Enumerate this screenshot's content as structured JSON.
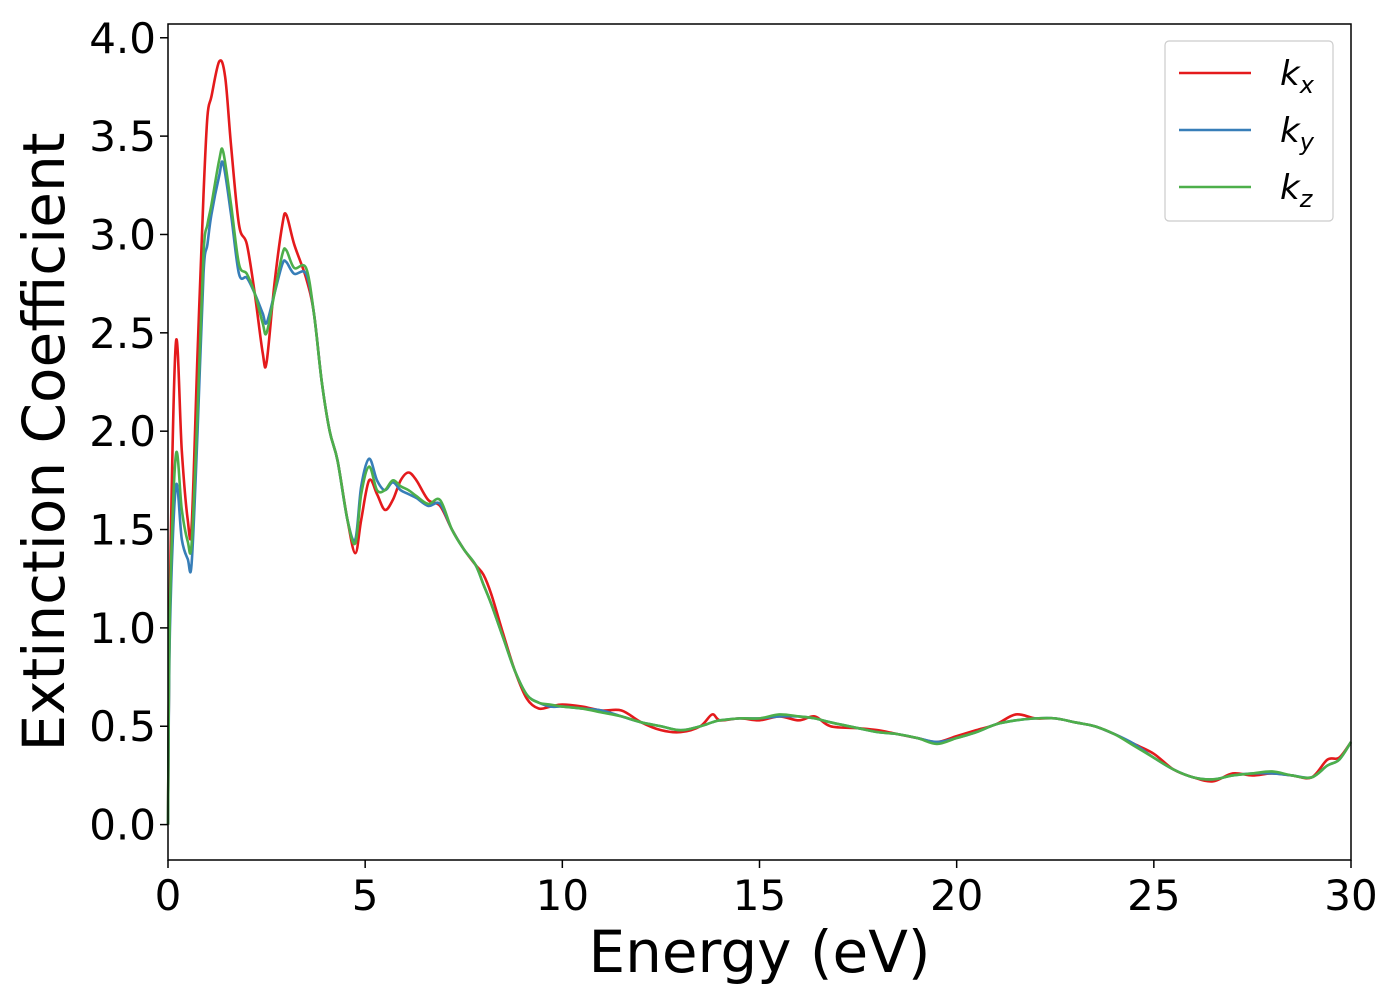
{
  "chart_data": {
    "type": "line",
    "xlabel": "Energy (eV)",
    "ylabel": "Extinction Coefficient",
    "xlim": [
      0,
      30
    ],
    "ylim": [
      -0.18,
      4.07
    ],
    "xticks": [
      0,
      5,
      10,
      15,
      20,
      25,
      30
    ],
    "xtick_labels": [
      "0",
      "5",
      "10",
      "15",
      "20",
      "25",
      "30"
    ],
    "yticks": [
      0.0,
      0.5,
      1.0,
      1.5,
      2.0,
      2.5,
      3.0,
      3.5,
      4.0
    ],
    "ytick_labels": [
      "0.0",
      "0.5",
      "1.0",
      "1.5",
      "2.0",
      "2.5",
      "3.0",
      "3.5",
      "4.0"
    ],
    "grid": false,
    "legend_position": "top-right",
    "series": [
      {
        "name": "k",
        "subscript": "x",
        "color": "#e41a1c",
        "points": [
          [
            0,
            0
          ],
          [
            0.05,
            1.2
          ],
          [
            0.2,
            2.45
          ],
          [
            0.35,
            1.9
          ],
          [
            0.5,
            1.55
          ],
          [
            0.6,
            1.52
          ],
          [
            0.75,
            2.4
          ],
          [
            0.9,
            3.2
          ],
          [
            1.0,
            3.6
          ],
          [
            1.1,
            3.7
          ],
          [
            1.3,
            3.88
          ],
          [
            1.45,
            3.8
          ],
          [
            1.6,
            3.45
          ],
          [
            1.8,
            3.05
          ],
          [
            2.0,
            2.95
          ],
          [
            2.2,
            2.7
          ],
          [
            2.4,
            2.4
          ],
          [
            2.5,
            2.35
          ],
          [
            2.7,
            2.75
          ],
          [
            2.9,
            3.05
          ],
          [
            3.0,
            3.1
          ],
          [
            3.2,
            2.95
          ],
          [
            3.5,
            2.78
          ],
          [
            3.7,
            2.6
          ],
          [
            3.9,
            2.25
          ],
          [
            4.1,
            2.0
          ],
          [
            4.3,
            1.85
          ],
          [
            4.55,
            1.55
          ],
          [
            4.75,
            1.38
          ],
          [
            4.9,
            1.55
          ],
          [
            5.1,
            1.75
          ],
          [
            5.3,
            1.68
          ],
          [
            5.5,
            1.6
          ],
          [
            5.7,
            1.65
          ],
          [
            5.9,
            1.75
          ],
          [
            6.1,
            1.79
          ],
          [
            6.3,
            1.75
          ],
          [
            6.6,
            1.65
          ],
          [
            6.9,
            1.62
          ],
          [
            7.2,
            1.5
          ],
          [
            7.5,
            1.4
          ],
          [
            7.8,
            1.32
          ],
          [
            8.0,
            1.27
          ],
          [
            8.2,
            1.17
          ],
          [
            8.5,
            0.97
          ],
          [
            8.8,
            0.78
          ],
          [
            9.1,
            0.64
          ],
          [
            9.4,
            0.59
          ],
          [
            9.7,
            0.6
          ],
          [
            10.0,
            0.61
          ],
          [
            10.5,
            0.6
          ],
          [
            11.0,
            0.58
          ],
          [
            11.5,
            0.58
          ],
          [
            12.0,
            0.52
          ],
          [
            12.5,
            0.48
          ],
          [
            13.0,
            0.47
          ],
          [
            13.5,
            0.5
          ],
          [
            13.8,
            0.56
          ],
          [
            14.0,
            0.53
          ],
          [
            14.5,
            0.54
          ],
          [
            15.0,
            0.53
          ],
          [
            15.5,
            0.55
          ],
          [
            16.0,
            0.53
          ],
          [
            16.4,
            0.55
          ],
          [
            16.8,
            0.5
          ],
          [
            17.5,
            0.49
          ],
          [
            18.0,
            0.48
          ],
          [
            18.5,
            0.46
          ],
          [
            19.0,
            0.44
          ],
          [
            19.5,
            0.42
          ],
          [
            20.0,
            0.45
          ],
          [
            20.5,
            0.48
          ],
          [
            21.0,
            0.51
          ],
          [
            21.5,
            0.56
          ],
          [
            22.0,
            0.54
          ],
          [
            22.5,
            0.54
          ],
          [
            23.0,
            0.52
          ],
          [
            23.5,
            0.5
          ],
          [
            24.0,
            0.46
          ],
          [
            24.5,
            0.41
          ],
          [
            25.0,
            0.36
          ],
          [
            25.5,
            0.28
          ],
          [
            26.0,
            0.24
          ],
          [
            26.5,
            0.22
          ],
          [
            27.0,
            0.26
          ],
          [
            27.5,
            0.25
          ],
          [
            28.0,
            0.26
          ],
          [
            28.5,
            0.25
          ],
          [
            29.0,
            0.24
          ],
          [
            29.4,
            0.33
          ],
          [
            29.7,
            0.34
          ],
          [
            30.0,
            0.42
          ]
        ]
      },
      {
        "name": "k",
        "subscript": "y",
        "color": "#377eb8",
        "points": [
          [
            0,
            0
          ],
          [
            0.05,
            1.0
          ],
          [
            0.2,
            1.72
          ],
          [
            0.35,
            1.45
          ],
          [
            0.5,
            1.35
          ],
          [
            0.6,
            1.33
          ],
          [
            0.75,
            2.0
          ],
          [
            0.9,
            2.8
          ],
          [
            1.0,
            2.95
          ],
          [
            1.1,
            3.1
          ],
          [
            1.3,
            3.3
          ],
          [
            1.4,
            3.36
          ],
          [
            1.6,
            3.1
          ],
          [
            1.8,
            2.8
          ],
          [
            2.0,
            2.78
          ],
          [
            2.2,
            2.7
          ],
          [
            2.4,
            2.6
          ],
          [
            2.5,
            2.55
          ],
          [
            2.7,
            2.7
          ],
          [
            2.9,
            2.85
          ],
          [
            3.0,
            2.86
          ],
          [
            3.2,
            2.8
          ],
          [
            3.5,
            2.8
          ],
          [
            3.7,
            2.6
          ],
          [
            3.9,
            2.25
          ],
          [
            4.1,
            2.0
          ],
          [
            4.3,
            1.85
          ],
          [
            4.55,
            1.55
          ],
          [
            4.75,
            1.45
          ],
          [
            4.9,
            1.72
          ],
          [
            5.1,
            1.86
          ],
          [
            5.3,
            1.75
          ],
          [
            5.5,
            1.7
          ],
          [
            5.7,
            1.74
          ],
          [
            5.9,
            1.7
          ],
          [
            6.1,
            1.68
          ],
          [
            6.3,
            1.66
          ],
          [
            6.6,
            1.62
          ],
          [
            6.9,
            1.63
          ],
          [
            7.2,
            1.5
          ],
          [
            7.5,
            1.4
          ],
          [
            7.8,
            1.32
          ],
          [
            8.0,
            1.22
          ],
          [
            8.2,
            1.12
          ],
          [
            8.5,
            0.95
          ],
          [
            8.8,
            0.78
          ],
          [
            9.1,
            0.66
          ],
          [
            9.4,
            0.62
          ],
          [
            9.7,
            0.6
          ],
          [
            10.0,
            0.6
          ],
          [
            10.5,
            0.59
          ],
          [
            11.0,
            0.58
          ],
          [
            11.5,
            0.55
          ],
          [
            12.0,
            0.52
          ],
          [
            12.5,
            0.5
          ],
          [
            13.0,
            0.48
          ],
          [
            13.5,
            0.5
          ],
          [
            13.8,
            0.52
          ],
          [
            14.0,
            0.53
          ],
          [
            14.5,
            0.54
          ],
          [
            15.0,
            0.54
          ],
          [
            15.5,
            0.55
          ],
          [
            16.0,
            0.55
          ],
          [
            16.4,
            0.54
          ],
          [
            16.8,
            0.52
          ],
          [
            17.5,
            0.49
          ],
          [
            18.0,
            0.47
          ],
          [
            18.5,
            0.46
          ],
          [
            19.0,
            0.44
          ],
          [
            19.5,
            0.42
          ],
          [
            20.0,
            0.44
          ],
          [
            20.5,
            0.47
          ],
          [
            21.0,
            0.51
          ],
          [
            21.5,
            0.53
          ],
          [
            22.0,
            0.54
          ],
          [
            22.5,
            0.54
          ],
          [
            23.0,
            0.52
          ],
          [
            23.5,
            0.5
          ],
          [
            24.0,
            0.46
          ],
          [
            24.5,
            0.41
          ],
          [
            25.0,
            0.34
          ],
          [
            25.5,
            0.28
          ],
          [
            26.0,
            0.24
          ],
          [
            26.5,
            0.23
          ],
          [
            27.0,
            0.25
          ],
          [
            27.5,
            0.26
          ],
          [
            28.0,
            0.26
          ],
          [
            28.5,
            0.25
          ],
          [
            29.0,
            0.24
          ],
          [
            29.4,
            0.3
          ],
          [
            29.7,
            0.33
          ],
          [
            30.0,
            0.42
          ]
        ]
      },
      {
        "name": "k",
        "subscript": "z",
        "color": "#4daf4a",
        "points": [
          [
            0,
            0
          ],
          [
            0.05,
            1.1
          ],
          [
            0.2,
            1.88
          ],
          [
            0.35,
            1.6
          ],
          [
            0.5,
            1.44
          ],
          [
            0.6,
            1.43
          ],
          [
            0.75,
            2.1
          ],
          [
            0.9,
            2.9
          ],
          [
            1.0,
            3.05
          ],
          [
            1.1,
            3.15
          ],
          [
            1.3,
            3.38
          ],
          [
            1.4,
            3.42
          ],
          [
            1.6,
            3.15
          ],
          [
            1.8,
            2.85
          ],
          [
            2.0,
            2.8
          ],
          [
            2.2,
            2.7
          ],
          [
            2.4,
            2.55
          ],
          [
            2.5,
            2.5
          ],
          [
            2.7,
            2.7
          ],
          [
            2.9,
            2.9
          ],
          [
            3.0,
            2.92
          ],
          [
            3.2,
            2.83
          ],
          [
            3.5,
            2.83
          ],
          [
            3.7,
            2.6
          ],
          [
            3.9,
            2.25
          ],
          [
            4.1,
            2.0
          ],
          [
            4.3,
            1.85
          ],
          [
            4.55,
            1.55
          ],
          [
            4.75,
            1.43
          ],
          [
            4.9,
            1.68
          ],
          [
            5.1,
            1.82
          ],
          [
            5.3,
            1.7
          ],
          [
            5.5,
            1.7
          ],
          [
            5.7,
            1.75
          ],
          [
            5.9,
            1.72
          ],
          [
            6.1,
            1.7
          ],
          [
            6.3,
            1.67
          ],
          [
            6.6,
            1.63
          ],
          [
            6.9,
            1.65
          ],
          [
            7.2,
            1.5
          ],
          [
            7.5,
            1.4
          ],
          [
            7.8,
            1.32
          ],
          [
            8.0,
            1.22
          ],
          [
            8.2,
            1.12
          ],
          [
            8.5,
            0.95
          ],
          [
            8.8,
            0.78
          ],
          [
            9.1,
            0.66
          ],
          [
            9.4,
            0.62
          ],
          [
            9.7,
            0.61
          ],
          [
            10.0,
            0.6
          ],
          [
            10.5,
            0.59
          ],
          [
            11.0,
            0.57
          ],
          [
            11.5,
            0.55
          ],
          [
            12.0,
            0.52
          ],
          [
            12.5,
            0.5
          ],
          [
            13.0,
            0.48
          ],
          [
            13.5,
            0.5
          ],
          [
            13.8,
            0.52
          ],
          [
            14.0,
            0.53
          ],
          [
            14.5,
            0.54
          ],
          [
            15.0,
            0.54
          ],
          [
            15.5,
            0.56
          ],
          [
            16.0,
            0.55
          ],
          [
            16.4,
            0.54
          ],
          [
            16.8,
            0.52
          ],
          [
            17.5,
            0.49
          ],
          [
            18.0,
            0.47
          ],
          [
            18.5,
            0.46
          ],
          [
            19.0,
            0.44
          ],
          [
            19.5,
            0.41
          ],
          [
            20.0,
            0.44
          ],
          [
            20.5,
            0.47
          ],
          [
            21.0,
            0.51
          ],
          [
            21.5,
            0.53
          ],
          [
            22.0,
            0.54
          ],
          [
            22.5,
            0.54
          ],
          [
            23.0,
            0.52
          ],
          [
            23.5,
            0.5
          ],
          [
            24.0,
            0.46
          ],
          [
            24.5,
            0.4
          ],
          [
            25.0,
            0.34
          ],
          [
            25.5,
            0.28
          ],
          [
            26.0,
            0.24
          ],
          [
            26.5,
            0.23
          ],
          [
            27.0,
            0.25
          ],
          [
            27.5,
            0.26
          ],
          [
            28.0,
            0.27
          ],
          [
            28.5,
            0.25
          ],
          [
            29.0,
            0.24
          ],
          [
            29.4,
            0.3
          ],
          [
            29.7,
            0.33
          ],
          [
            30.0,
            0.42
          ]
        ]
      }
    ]
  }
}
